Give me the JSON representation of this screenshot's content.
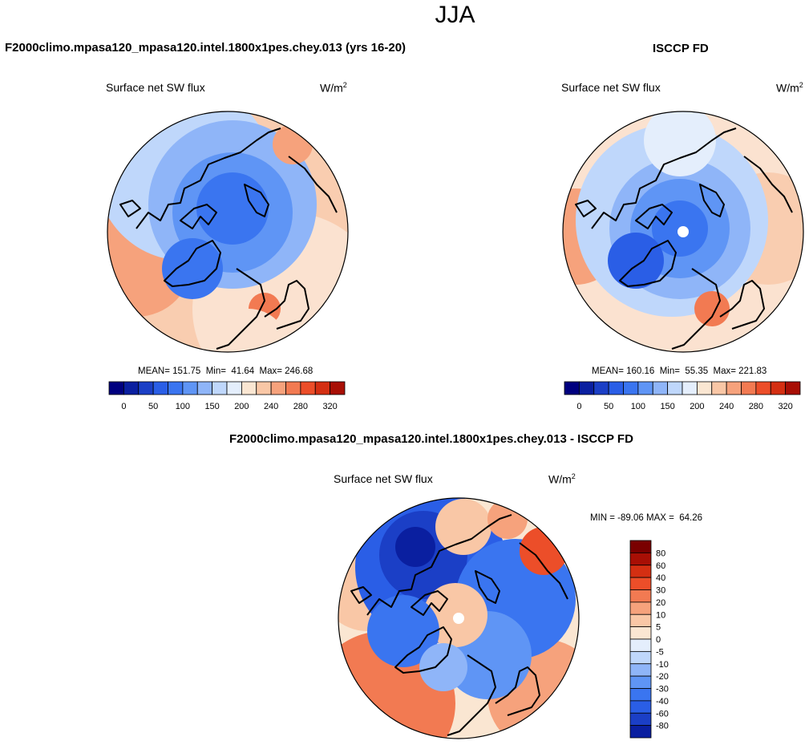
{
  "figure": {
    "title": "JJA",
    "left_panel": {
      "case_title": "F2000climo.mpasa120_mpasa120.intel.1800x1pes.chey.013 (yrs 16-20)",
      "variable": "Surface net SW flux",
      "units_base": "W/m",
      "units_exp": "2",
      "stats": "MEAN= 151.75  Min=  41.64  Max= 246.68"
    },
    "right_panel": {
      "case_title": "ISCCP FD",
      "variable": "Surface net SW flux",
      "units_base": "W/m",
      "units_exp": "2",
      "stats": "MEAN= 160.16  Min=  55.35  Max= 221.83"
    },
    "diff_panel": {
      "case_title": "F2000climo.mpasa120_mpasa120.intel.1800x1pes.chey.013 - ISCCP FD",
      "variable": "Surface net SW flux",
      "units_base": "W/m",
      "units_exp": "2",
      "stats": "MIN = -89.06 MAX =  64.26"
    }
  },
  "chart_data": [
    {
      "type": "heatmap",
      "projection": "north polar stereographic",
      "title": "F2000climo.mpasa120_mpasa120.intel.1800x1pes.chey.013 (yrs 16-20)",
      "variable": "Surface net SW flux",
      "units": "W/m2",
      "mean": 151.75,
      "min": 41.64,
      "max": 246.68,
      "colorbar_orientation": "horizontal",
      "levels": [
        0,
        25,
        50,
        75,
        100,
        125,
        150,
        175,
        200,
        220,
        240,
        260,
        280,
        300,
        320
      ],
      "tick_labels": [
        "0",
        "50",
        "100",
        "150",
        "200",
        "240",
        "280",
        "320"
      ]
    },
    {
      "type": "heatmap",
      "projection": "north polar stereographic",
      "title": "ISCCP FD",
      "variable": "Surface net SW flux",
      "units": "W/m2",
      "mean": 160.16,
      "min": 55.35,
      "max": 221.83,
      "colorbar_orientation": "horizontal",
      "levels": [
        0,
        25,
        50,
        75,
        100,
        125,
        150,
        175,
        200,
        220,
        240,
        260,
        280,
        300,
        320
      ],
      "tick_labels": [
        "0",
        "50",
        "100",
        "150",
        "200",
        "240",
        "280",
        "320"
      ]
    },
    {
      "type": "heatmap",
      "projection": "north polar stereographic",
      "title": "F2000climo.mpasa120_mpasa120.intel.1800x1pes.chey.013 - ISCCP FD",
      "variable": "Surface net SW flux",
      "units": "W/m2",
      "min": -89.06,
      "max": 64.26,
      "colorbar_orientation": "vertical",
      "levels": [
        80,
        60,
        40,
        30,
        20,
        10,
        5,
        0,
        -5,
        -10,
        -20,
        -30,
        -40,
        -60,
        -80
      ],
      "tick_labels": [
        "80",
        "60",
        "40",
        "30",
        "20",
        "10",
        "5",
        "0",
        "-5",
        "-10",
        "-20",
        "-30",
        "-40",
        "-60",
        "-80"
      ]
    }
  ],
  "colors": {
    "seq": [
      "#00007f",
      "#0a1fa0",
      "#1b3fc6",
      "#2a5ee6",
      "#3a75f0",
      "#5f95f5",
      "#8fb5f8",
      "#bfd7fb",
      "#e4eefc",
      "#fae6d2",
      "#f9c7a6",
      "#f6a27c",
      "#f27a52",
      "#ec4e29",
      "#d42f12",
      "#a80f05",
      "#7a0000"
    ],
    "land": "#000000"
  }
}
